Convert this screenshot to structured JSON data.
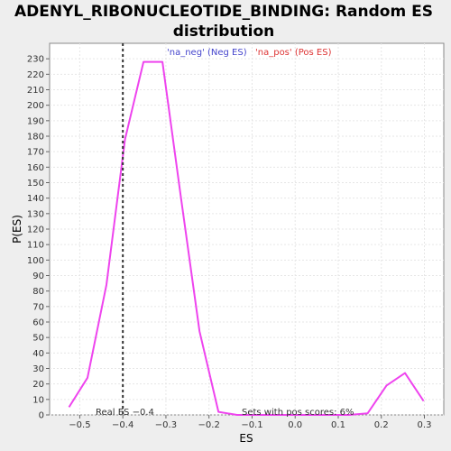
{
  "chart_data": {
    "type": "line",
    "title_line1": "ADENYL_RIBONUCLEOTIDE_BINDING: Random ES",
    "title_line2": "distribution",
    "xlabel": "ES",
    "ylabel": "P(ES)",
    "xlim": [
      -0.57,
      0.345
    ],
    "ylim": [
      0,
      240
    ],
    "xticks": [
      -0.5,
      -0.4,
      -0.3,
      -0.2,
      -0.1,
      0.0,
      0.1,
      0.2,
      0.3
    ],
    "xtick_labels": [
      "−0.5",
      "−0.4",
      "−0.3",
      "−0.2",
      "−0.1",
      "0.0",
      "0.1",
      "0.2",
      "0.3"
    ],
    "yticks": [
      0,
      10,
      20,
      30,
      40,
      50,
      60,
      70,
      80,
      90,
      100,
      110,
      120,
      130,
      140,
      150,
      160,
      170,
      180,
      190,
      200,
      210,
      220,
      230
    ],
    "grid": true,
    "legend": {
      "placement": "top",
      "entries": [
        {
          "label": "'na_neg' (Neg ES)",
          "color": "#4444cc"
        },
        {
          "label": "'na_pos' (Pos ES)",
          "color": "#dd3333"
        }
      ]
    },
    "series": [
      {
        "color": "#ee44ee",
        "x": [
          -0.525,
          -0.482,
          -0.438,
          -0.395,
          -0.352,
          -0.308,
          -0.265,
          -0.222,
          -0.178,
          -0.135,
          -0.092,
          -0.048,
          -0.005,
          0.038,
          0.082,
          0.125,
          0.168,
          0.212,
          0.255,
          0.298
        ],
        "y": [
          5,
          24,
          84,
          178,
          228,
          228,
          140,
          54,
          2,
          0,
          0,
          0,
          0,
          0,
          0,
          0,
          1,
          19,
          27,
          9
        ]
      }
    ],
    "real_es": {
      "value": -0.4,
      "label": "Real ES −0.4",
      "style": "dotted"
    },
    "pos_scores_text": "Sets with pos scores: 6%"
  }
}
